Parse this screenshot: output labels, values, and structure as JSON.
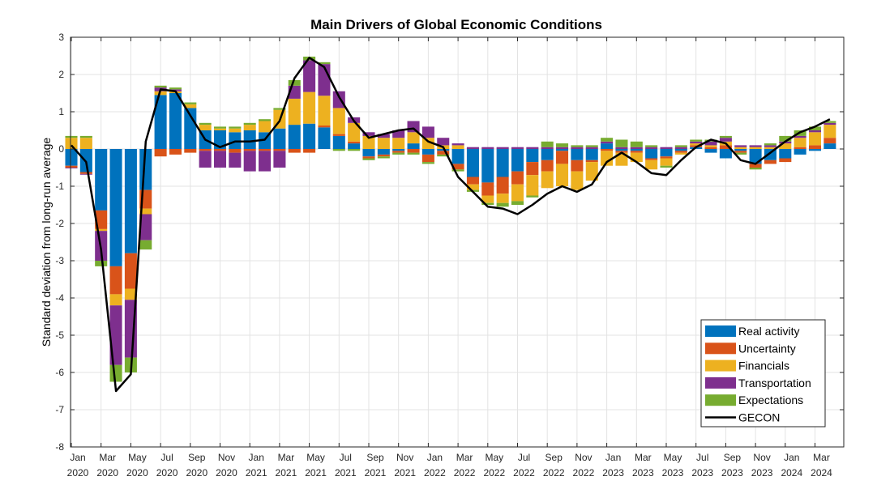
{
  "chart_data": {
    "type": "bar",
    "stacked": true,
    "title": "Main Drivers of Global Economic Conditions",
    "ylabel": "Standard deviation from long-run average",
    "xlabel": "",
    "ylim": [
      -8,
      3
    ],
    "yticks": [
      3,
      2,
      1,
      0,
      -1,
      -2,
      -3,
      -4,
      -5,
      -6,
      -7,
      -8
    ],
    "grid": true,
    "legend_position": "bottom-right",
    "categories": [
      "2020-01",
      "2020-02",
      "2020-03",
      "2020-04",
      "2020-05",
      "2020-06",
      "2020-07",
      "2020-08",
      "2020-09",
      "2020-10",
      "2020-11",
      "2020-12",
      "2021-01",
      "2021-02",
      "2021-03",
      "2021-04",
      "2021-05",
      "2021-06",
      "2021-07",
      "2021-08",
      "2021-09",
      "2021-10",
      "2021-11",
      "2021-12",
      "2022-01",
      "2022-02",
      "2022-03",
      "2022-04",
      "2022-05",
      "2022-06",
      "2022-07",
      "2022-08",
      "2022-09",
      "2022-10",
      "2022-11",
      "2022-12",
      "2023-01",
      "2023-02",
      "2023-03",
      "2023-04",
      "2023-05",
      "2023-06",
      "2023-07",
      "2023-08",
      "2023-09",
      "2023-10",
      "2023-11",
      "2023-12",
      "2024-01",
      "2024-02",
      "2024-03",
      "2024-04"
    ],
    "x_tick_labels": [
      {
        "month": "Jan",
        "year": "2020"
      },
      {
        "month": "Mar",
        "year": "2020"
      },
      {
        "month": "May",
        "year": "2020"
      },
      {
        "month": "Jul",
        "year": "2020"
      },
      {
        "month": "Sep",
        "year": "2020"
      },
      {
        "month": "Nov",
        "year": "2020"
      },
      {
        "month": "Jan",
        "year": "2021"
      },
      {
        "month": "Mar",
        "year": "2021"
      },
      {
        "month": "May",
        "year": "2021"
      },
      {
        "month": "Jul",
        "year": "2021"
      },
      {
        "month": "Sep",
        "year": "2021"
      },
      {
        "month": "Nov",
        "year": "2021"
      },
      {
        "month": "Jan",
        "year": "2022"
      },
      {
        "month": "Mar",
        "year": "2022"
      },
      {
        "month": "May",
        "year": "2022"
      },
      {
        "month": "Jul",
        "year": "2022"
      },
      {
        "month": "Sep",
        "year": "2022"
      },
      {
        "month": "Nov",
        "year": "2022"
      },
      {
        "month": "Jan",
        "year": "2023"
      },
      {
        "month": "Mar",
        "year": "2023"
      },
      {
        "month": "May",
        "year": "2023"
      },
      {
        "month": "Jul",
        "year": "2023"
      },
      {
        "month": "Sep",
        "year": "2023"
      },
      {
        "month": "Nov",
        "year": "2023"
      },
      {
        "month": "Jan",
        "year": "2024"
      },
      {
        "month": "Mar",
        "year": "2024"
      }
    ],
    "series": [
      {
        "name": "Real activity",
        "color": "#0072BD",
        "values": [
          -0.45,
          -0.62,
          -1.65,
          -3.15,
          -2.8,
          -1.1,
          1.45,
          1.5,
          1.1,
          0.5,
          0.5,
          0.45,
          0.5,
          0.45,
          0.55,
          0.65,
          0.68,
          0.58,
          0.35,
          0.15,
          -0.2,
          -0.15,
          -0.05,
          0.15,
          -0.15,
          -0.05,
          -0.4,
          -0.75,
          -0.9,
          -0.75,
          -0.6,
          -0.35,
          -0.3,
          -0.05,
          -0.3,
          -0.3,
          0.15,
          -0.05,
          -0.05,
          -0.25,
          -0.2,
          -0.05,
          0.05,
          -0.1,
          -0.25,
          -0.05,
          -0.4,
          -0.3,
          -0.25,
          -0.15,
          -0.05,
          0.15
        ]
      },
      {
        "name": "Uncertainty",
        "color": "#D95319",
        "values": [
          -0.05,
          -0.05,
          -0.5,
          -0.75,
          -0.95,
          -0.5,
          -0.2,
          -0.15,
          -0.1,
          -0.05,
          -0.05,
          -0.1,
          -0.05,
          -0.05,
          -0.05,
          -0.1,
          -0.1,
          0.05,
          0.05,
          0.05,
          -0.05,
          -0.05,
          -0.05,
          -0.1,
          -0.2,
          -0.1,
          -0.15,
          -0.2,
          -0.35,
          -0.45,
          -0.35,
          -0.35,
          -0.3,
          -0.35,
          -0.3,
          -0.05,
          -0.05,
          -0.05,
          -0.05,
          -0.05,
          -0.05,
          -0.05,
          0.05,
          0.05,
          0.1,
          -0.05,
          -0.1,
          -0.1,
          -0.1,
          0.05,
          0.1,
          0.15
        ]
      },
      {
        "name": "Financials",
        "color": "#EDB120",
        "values": [
          0.3,
          0.3,
          -0.05,
          -0.3,
          -0.3,
          -0.15,
          0.1,
          0.05,
          0.1,
          0.15,
          0.05,
          0.1,
          0.15,
          0.3,
          0.5,
          0.7,
          0.85,
          0.8,
          0.7,
          0.5,
          0.35,
          0.3,
          0.3,
          0.3,
          0.3,
          0.1,
          0.1,
          -0.15,
          -0.2,
          -0.25,
          -0.45,
          -0.55,
          -0.45,
          -0.6,
          -0.5,
          -0.5,
          -0.4,
          -0.35,
          -0.25,
          -0.25,
          -0.2,
          -0.05,
          0.05,
          0.05,
          0.1,
          0.05,
          0.05,
          0.05,
          0.15,
          0.25,
          0.35,
          0.35
        ]
      },
      {
        "name": "Transportation",
        "color": "#7E2F8E",
        "values": [
          -0.02,
          -0.02,
          -0.8,
          -1.6,
          -1.55,
          -0.7,
          0.1,
          0.05,
          0,
          -0.45,
          -0.45,
          -0.4,
          -0.55,
          -0.55,
          -0.45,
          0.35,
          0.85,
          0.85,
          0.45,
          0.15,
          0.1,
          0.1,
          0.2,
          0.3,
          0.3,
          0.2,
          0.05,
          0.05,
          0.05,
          0.05,
          0.05,
          0.05,
          0.05,
          0.05,
          0.05,
          0.05,
          0.05,
          0.05,
          0.05,
          0.05,
          0.05,
          0.05,
          0.05,
          0.1,
          0.1,
          0.05,
          0.05,
          0.05,
          0.05,
          0.05,
          0.05,
          0.05
        ]
      },
      {
        "name": "Expectations",
        "color": "#77AC30",
        "values": [
          0.05,
          0.05,
          -0.15,
          -0.45,
          -0.4,
          -0.25,
          0.05,
          0.05,
          0.05,
          0.05,
          0.05,
          0.05,
          0.05,
          0.05,
          0.05,
          0.15,
          0.1,
          0.05,
          -0.05,
          -0.05,
          -0.05,
          -0.05,
          -0.05,
          -0.05,
          -0.05,
          -0.05,
          -0.05,
          -0.05,
          -0.05,
          -0.1,
          -0.1,
          -0.05,
          0.15,
          0.1,
          0.05,
          0.05,
          0.1,
          0.2,
          0.15,
          0.05,
          -0.05,
          0.05,
          0.05,
          0.05,
          0.05,
          -0.05,
          -0.05,
          0.05,
          0.15,
          0.15,
          0.1,
          0.05
        ]
      }
    ],
    "line": {
      "name": "GECON",
      "color": "#000000",
      "values": [
        0.1,
        -0.35,
        -2.7,
        -6.5,
        -6.05,
        0.2,
        1.6,
        1.55,
        0.9,
        0.25,
        0.05,
        0.2,
        0.2,
        0.25,
        0.75,
        1.9,
        2.45,
        2.2,
        1.4,
        0.75,
        0.3,
        0.4,
        0.5,
        0.55,
        0.2,
        0.05,
        -0.75,
        -1.15,
        -1.55,
        -1.6,
        -1.75,
        -1.5,
        -1.2,
        -1.0,
        -1.15,
        -0.95,
        -0.35,
        -0.1,
        -0.35,
        -0.65,
        -0.7,
        -0.3,
        0.05,
        0.25,
        0.15,
        -0.3,
        -0.4,
        -0.1,
        0.2,
        0.45,
        0.6,
        0.8
      ]
    }
  }
}
